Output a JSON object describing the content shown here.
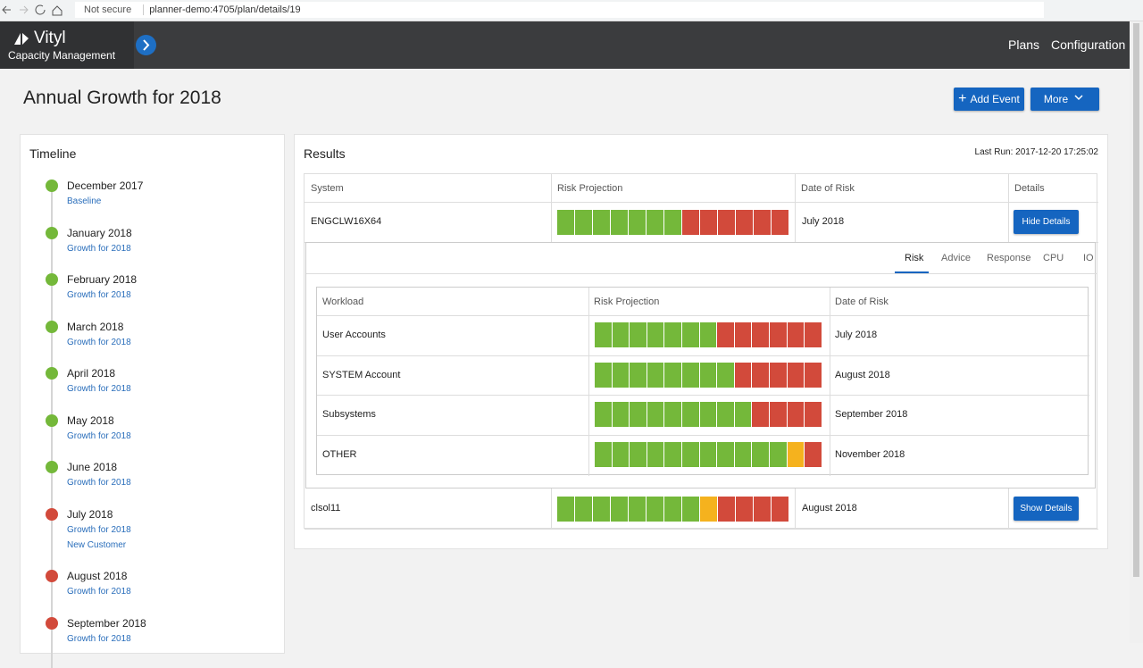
{
  "browser": {
    "security": "Not secure",
    "url": "planner-demo:4705/plan/details/19"
  },
  "header": {
    "brand": "Vityl",
    "subtitle": "Capacity Management",
    "nav": [
      "Plans",
      "Configuration"
    ]
  },
  "page": {
    "title": "Annual Growth for 2018",
    "buttons": [
      "Add Event",
      "More"
    ]
  },
  "timeline": {
    "title": "Timeline",
    "items": [
      {
        "date": "December 2017",
        "status": "green",
        "labels": [
          "Baseline"
        ]
      },
      {
        "date": "January 2018",
        "status": "green",
        "labels": [
          "Growth for 2018"
        ]
      },
      {
        "date": "February 2018",
        "status": "green",
        "labels": [
          "Growth for 2018"
        ]
      },
      {
        "date": "March 2018",
        "status": "green",
        "labels": [
          "Growth for 2018"
        ]
      },
      {
        "date": "April 2018",
        "status": "green",
        "labels": [
          "Growth for 2018"
        ]
      },
      {
        "date": "May 2018",
        "status": "green",
        "labels": [
          "Growth for 2018"
        ]
      },
      {
        "date": "June 2018",
        "status": "green",
        "labels": [
          "Growth for 2018"
        ]
      },
      {
        "date": "July 2018",
        "status": "red",
        "labels": [
          "Growth for 2018",
          "New Customer"
        ]
      },
      {
        "date": "August 2018",
        "status": "red",
        "labels": [
          "Growth for 2018"
        ]
      },
      {
        "date": "September 2018",
        "status": "red",
        "labels": [
          "Growth for 2018"
        ]
      }
    ]
  },
  "results": {
    "title": "Results",
    "last_run_label": "Last Run:",
    "last_run": "2017-12-20 17:25:02",
    "columns": [
      "System",
      "Risk Projection",
      "Date of Risk",
      "Details"
    ],
    "rows": [
      {
        "system": "ENGCLW16X64",
        "date": "July 2018",
        "action": "Hide Details",
        "risk": [
          "green",
          "green",
          "green",
          "green",
          "green",
          "green",
          "green",
          "red",
          "red",
          "red",
          "red",
          "red",
          "red"
        ],
        "details": {
          "tabs": [
            "Risk",
            "Advice",
            "Response",
            "CPU",
            "IO"
          ],
          "active_tab": "Risk",
          "columns": [
            "Workload",
            "Risk Projection",
            "Date of Risk"
          ],
          "rows": [
            {
              "workload": "User Accounts",
              "date": "July 2018",
              "risk": [
                "green",
                "green",
                "green",
                "green",
                "green",
                "green",
                "green",
                "red",
                "red",
                "red",
                "red",
                "red",
                "red"
              ]
            },
            {
              "workload": "SYSTEM Account",
              "date": "August 2018",
              "risk": [
                "green",
                "green",
                "green",
                "green",
                "green",
                "green",
                "green",
                "green",
                "red",
                "red",
                "red",
                "red",
                "red"
              ]
            },
            {
              "workload": "Subsystems",
              "date": "September 2018",
              "risk": [
                "green",
                "green",
                "green",
                "green",
                "green",
                "green",
                "green",
                "green",
                "green",
                "red",
                "red",
                "red",
                "red"
              ]
            },
            {
              "workload": "OTHER",
              "date": "November 2018",
              "risk": [
                "green",
                "green",
                "green",
                "green",
                "green",
                "green",
                "green",
                "green",
                "green",
                "green",
                "green",
                "amber",
                "red"
              ]
            }
          ]
        }
      },
      {
        "system": "clsol11",
        "date": "August 2018",
        "action": "Show Details",
        "risk": [
          "green",
          "green",
          "green",
          "green",
          "green",
          "green",
          "green",
          "green",
          "amber",
          "red",
          "red",
          "red",
          "red"
        ]
      }
    ]
  }
}
